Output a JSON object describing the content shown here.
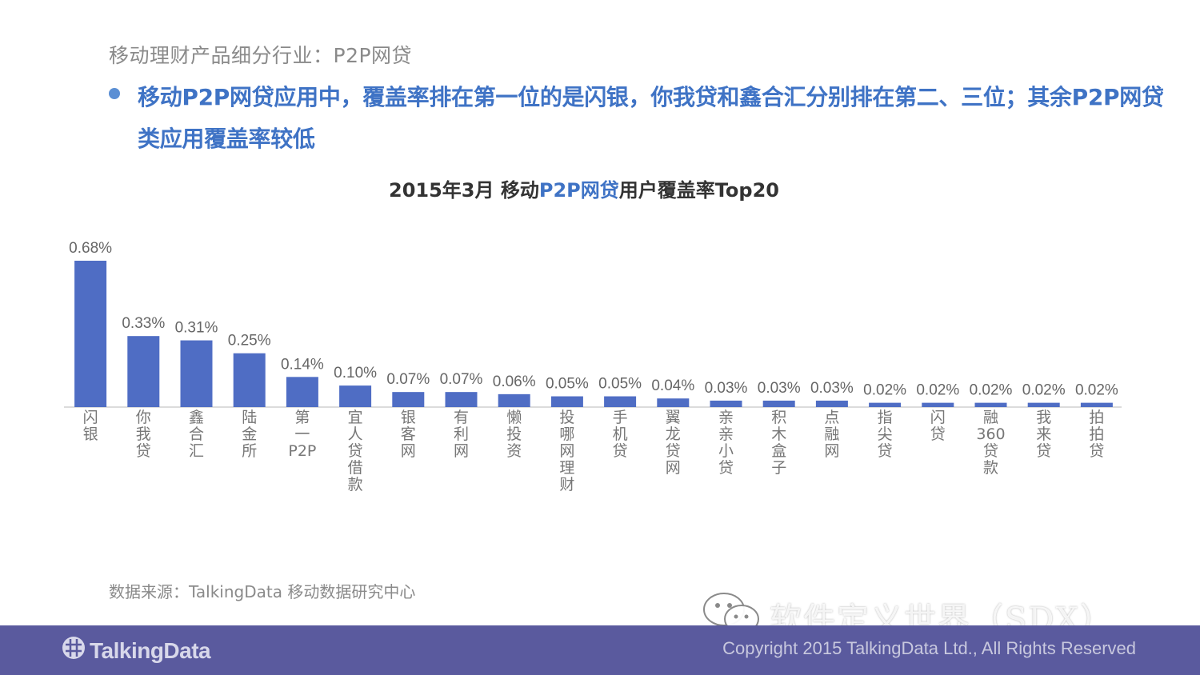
{
  "header": {
    "section_label": "移动理财产品细分行业：P2P网贷",
    "headline": "移动P2P网贷应用中，覆盖率排在第一位的是闪银，你我贷和鑫合汇分别排在第二、三位；其余P2P网贷类应用覆盖率较低"
  },
  "chart_title": {
    "prefix": "2015年3月 移动",
    "highlight": "P2P网贷",
    "suffix": "用户覆盖率Top20"
  },
  "chart_data": {
    "type": "bar",
    "title": "2015年3月 移动P2P网贷用户覆盖率Top20",
    "xlabel": "",
    "ylabel": "",
    "ylim": [
      0,
      0.72
    ],
    "grid": false,
    "bar_color": "#4f6dc4",
    "categories": [
      "闪银",
      "你我贷",
      "鑫合汇",
      "陆金所",
      "第一P2P",
      "宜人贷借款",
      "银客网",
      "有利网",
      "懒投资",
      "投哪网理财",
      "手机贷",
      "翼龙贷网",
      "亲亲小贷",
      "积木盒子",
      "点融网",
      "指尖贷",
      "闪贷",
      "融360贷款",
      "我来贷",
      "拍拍贷"
    ],
    "values": [
      0.68,
      0.33,
      0.31,
      0.25,
      0.14,
      0.1,
      0.07,
      0.07,
      0.06,
      0.05,
      0.05,
      0.04,
      0.03,
      0.03,
      0.03,
      0.02,
      0.02,
      0.02,
      0.02,
      0.02
    ],
    "value_labels": [
      "0.68%",
      "0.33%",
      "0.31%",
      "0.25%",
      "0.14%",
      "0.10%",
      "0.07%",
      "0.07%",
      "0.06%",
      "0.05%",
      "0.05%",
      "0.04%",
      "0.03%",
      "0.03%",
      "0.03%",
      "0.02%",
      "0.02%",
      "0.02%",
      "0.02%",
      "0.02%"
    ]
  },
  "footer": {
    "source": "数据来源：TalkingData 移动数据研究中心",
    "watermark": "软件定义世界（SDX）",
    "logo_text": "TalkingData",
    "copyright": "Copyright 2015 TalkingData Ltd., All Rights Reserved"
  },
  "icons": {
    "bullet": "bullet-dot-icon",
    "wechat": "wechat-icon",
    "logo": "talkingdata-logo-icon"
  },
  "colors": {
    "headline": "#3f73c5",
    "footer_bg": "#5a5a9e",
    "bar": "#4f6dc4"
  }
}
